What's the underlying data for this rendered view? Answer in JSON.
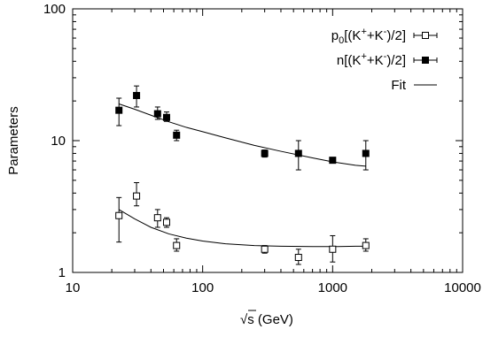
{
  "chart_data": {
    "type": "scatter",
    "xscale": "log",
    "yscale": "log",
    "xlim": [
      10,
      10000
    ],
    "ylim": [
      1,
      100
    ],
    "xlabel_prefix": "√",
    "xlabel_var": "s",
    "xlabel_units": " (GeV)",
    "ylabel": "Parameters",
    "x_ticks": [
      {
        "value": 10,
        "label": "10"
      },
      {
        "value": 100,
        "label": "100"
      },
      {
        "value": 1000,
        "label": "1000"
      },
      {
        "value": 10000,
        "label": "10000"
      }
    ],
    "y_ticks": [
      {
        "value": 1,
        "label": "1"
      },
      {
        "value": 10,
        "label": "10"
      },
      {
        "value": 100,
        "label": "100"
      }
    ],
    "grid": false,
    "legend_position": "top-right",
    "series": [
      {
        "key": "p0",
        "legend": {
          "main": "p",
          "sub": "0",
          "rest": "[(K",
          "sup1": "+",
          "mid": "+K",
          "sup2": "-",
          "end": ")/2]"
        },
        "marker": "open-square",
        "points": [
          {
            "x": 22.7,
            "y": 2.7,
            "lo": 1.7,
            "hi": 3.7
          },
          {
            "x": 31,
            "y": 3.8,
            "lo": 3.2,
            "hi": 4.8
          },
          {
            "x": 45,
            "y": 2.6,
            "lo": 2.2,
            "hi": 3.0
          },
          {
            "x": 52.8,
            "y": 2.4,
            "lo": 2.2,
            "hi": 2.6
          },
          {
            "x": 63,
            "y": 1.6,
            "lo": 1.45,
            "hi": 1.8
          },
          {
            "x": 300,
            "y": 1.5,
            "lo": 1.4,
            "hi": 1.6
          },
          {
            "x": 546,
            "y": 1.3,
            "lo": 1.15,
            "hi": 1.5
          },
          {
            "x": 1000,
            "y": 1.5,
            "lo": 1.2,
            "hi": 1.9
          },
          {
            "x": 1800,
            "y": 1.6,
            "lo": 1.45,
            "hi": 1.8
          }
        ]
      },
      {
        "key": "n",
        "legend": {
          "main": "n",
          "sub": "",
          "rest": "[(K",
          "sup1": "+",
          "mid": "+K",
          "sup2": "-",
          "end": ")/2]"
        },
        "marker": "filled-square",
        "points": [
          {
            "x": 22.7,
            "y": 17,
            "lo": 13,
            "hi": 21
          },
          {
            "x": 31,
            "y": 22,
            "lo": 18,
            "hi": 26
          },
          {
            "x": 45,
            "y": 16,
            "lo": 14.5,
            "hi": 18
          },
          {
            "x": 52.8,
            "y": 15,
            "lo": 14,
            "hi": 16.5
          },
          {
            "x": 63,
            "y": 11,
            "lo": 10,
            "hi": 12
          },
          {
            "x": 300,
            "y": 8,
            "lo": 7.5,
            "hi": 8.5
          },
          {
            "x": 546,
            "y": 8,
            "lo": 6,
            "hi": 10
          },
          {
            "x": 1000,
            "y": 7.1,
            "lo": 6.9,
            "hi": 7.3
          },
          {
            "x": 1800,
            "y": 8,
            "lo": 6,
            "hi": 10
          }
        ]
      }
    ],
    "fit": {
      "label": "Fit",
      "curves": [
        {
          "for": "p0",
          "x": [
            22.7,
            30,
            40,
            55,
            75,
            100,
            150,
            250,
            400,
            700,
            1000,
            1500,
            1800
          ],
          "y": [
            3.0,
            2.55,
            2.2,
            1.96,
            1.82,
            1.73,
            1.65,
            1.6,
            1.58,
            1.57,
            1.57,
            1.58,
            1.58
          ]
        },
        {
          "for": "n",
          "x": [
            22.7,
            30,
            40,
            55,
            75,
            100,
            150,
            250,
            400,
            700,
            1000,
            1500,
            1800
          ],
          "y": [
            19.0,
            17.3,
            15.6,
            13.9,
            12.6,
            11.7,
            10.5,
            9.2,
            8.3,
            7.4,
            6.9,
            6.5,
            6.4
          ]
        }
      ]
    }
  }
}
